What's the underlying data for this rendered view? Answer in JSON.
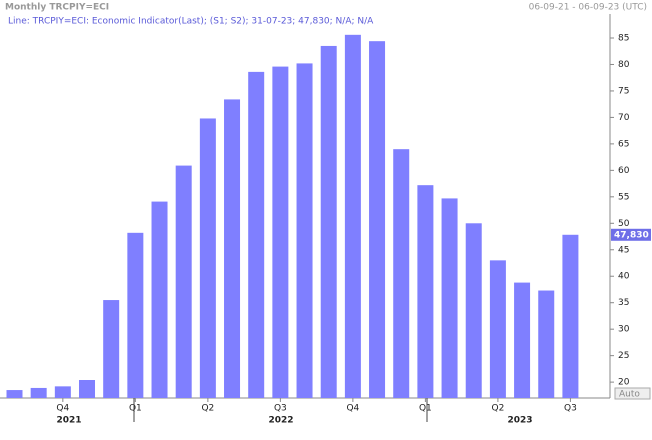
{
  "chart_data": {
    "type": "bar",
    "title": "Monthly TRCPIY=ECI",
    "date_range": "06-09-21 - 06-09-23 (UTC)",
    "legend_text": "Line: TRCPIY=ECI: Economic Indicator(Last); (S1; S2); 31-07-23; 47,830; N/A; N/A",
    "scale_mode": "Auto",
    "categories": [
      null,
      null,
      "Q4",
      null,
      null,
      "Q1",
      null,
      null,
      "Q2",
      null,
      null,
      "Q3",
      null,
      null,
      "Q4",
      null,
      null,
      "Q1",
      null,
      null,
      "Q2",
      null,
      null,
      "Q3"
    ],
    "years": [
      "2021",
      "2022",
      "2023"
    ],
    "values": [
      18.5,
      18.9,
      19.2,
      20.4,
      35.5,
      48.2,
      54.1,
      60.9,
      69.8,
      73.4,
      78.6,
      79.6,
      80.2,
      83.5,
      85.6,
      84.4,
      64.0,
      57.2,
      54.7,
      50.0,
      43.0,
      38.8,
      37.3,
      47.83
    ],
    "last_value": 47.83,
    "last_value_label": "47,830",
    "color": "#7f7fff",
    "ylim": [
      17,
      88.4
    ],
    "yticks": [
      20,
      25,
      30,
      35,
      40,
      45,
      50,
      55,
      60,
      65,
      70,
      75,
      80,
      85
    ]
  }
}
